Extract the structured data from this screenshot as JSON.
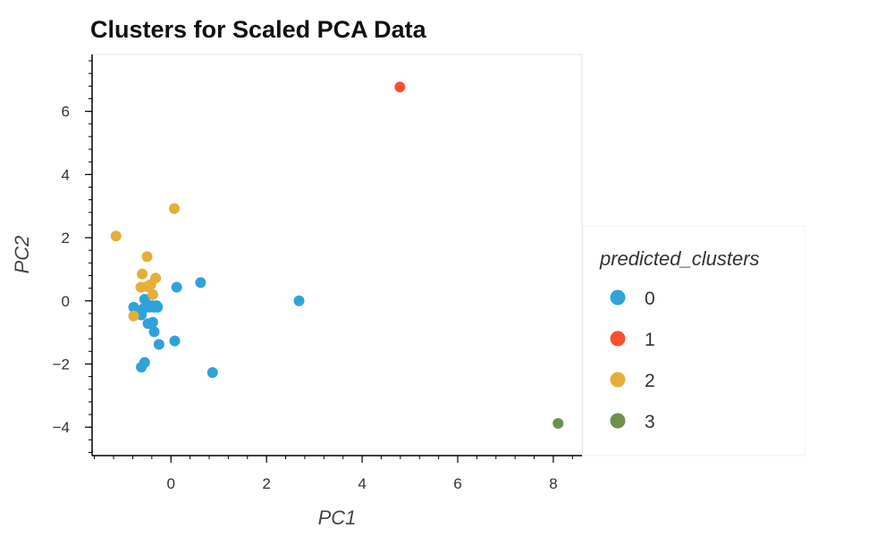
{
  "chart_data": {
    "type": "scatter",
    "title": "Clusters for Scaled PCA Data",
    "xlabel": "PC1",
    "ylabel": "PC2",
    "xlim": [
      -1.65,
      8.6
    ],
    "ylim": [
      -4.9,
      7.8
    ],
    "xticks": [
      0,
      2,
      4,
      6,
      8
    ],
    "xtick_labels": [
      "0",
      "2",
      "4",
      "6",
      "8"
    ],
    "yticks": [
      -4,
      -2,
      0,
      2,
      4,
      6
    ],
    "ytick_labels": [
      "−4",
      "−2",
      "0",
      "2",
      "4",
      "6"
    ],
    "grid": false,
    "legend": {
      "title": "predicted_clusters",
      "placement": "right"
    },
    "series": [
      {
        "name": "0",
        "color": "#30a2da",
        "points": [
          [
            -0.78,
            -0.2
          ],
          [
            -0.68,
            -0.38
          ],
          [
            -0.62,
            -0.45
          ],
          [
            -0.58,
            -0.25
          ],
          [
            -0.55,
            0.05
          ],
          [
            -0.5,
            -0.12
          ],
          [
            -0.48,
            -0.72
          ],
          [
            -0.45,
            -0.2
          ],
          [
            -0.4,
            -0.15
          ],
          [
            -0.38,
            -0.68
          ],
          [
            -0.35,
            -0.98
          ],
          [
            -0.3,
            -0.15
          ],
          [
            -0.28,
            -0.2
          ],
          [
            -0.25,
            -1.38
          ],
          [
            -0.55,
            -1.95
          ],
          [
            -0.62,
            -2.1
          ],
          [
            0.08,
            -1.27
          ],
          [
            0.12,
            0.43
          ],
          [
            0.62,
            0.58
          ],
          [
            0.87,
            -2.27
          ],
          [
            2.68,
            0.0
          ],
          [
            -0.35,
            -0.2
          ]
        ]
      },
      {
        "name": "1",
        "color": "#fc4f30",
        "points": [
          [
            4.79,
            6.77
          ]
        ]
      },
      {
        "name": "2",
        "color": "#e5ae38",
        "points": [
          [
            -1.15,
            2.05
          ],
          [
            0.07,
            2.92
          ],
          [
            -0.5,
            1.4
          ],
          [
            -0.6,
            0.85
          ],
          [
            -0.32,
            0.72
          ],
          [
            -0.42,
            0.52
          ],
          [
            -0.63,
            0.43
          ],
          [
            -0.78,
            -0.48
          ],
          [
            -0.38,
            0.2
          ],
          [
            -0.5,
            0.45
          ]
        ]
      },
      {
        "name": "3",
        "color": "#6d904f",
        "points": [
          [
            8.1,
            -3.88
          ]
        ]
      }
    ]
  }
}
